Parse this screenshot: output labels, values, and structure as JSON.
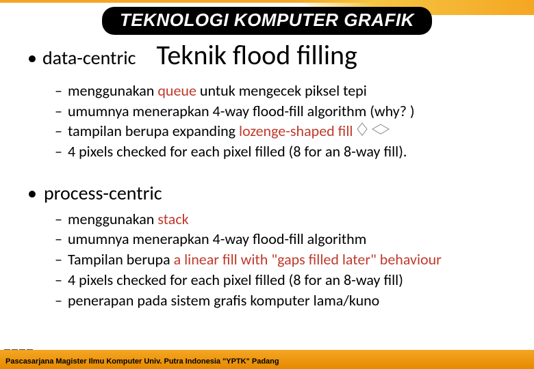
{
  "banner": "TEKNOLOGI KOMPUTER GRAFIK",
  "title": "Teknik flood filling",
  "section1": {
    "label": "data-centric",
    "items": [
      {
        "pre": "menggunakan ",
        "red": "queue",
        "post": " untuk mengecek piksel tepi"
      },
      {
        "pre": "umumnya menerapkan  4-way flood-fill algorithm (why? )",
        "red": "",
        "post": ""
      },
      {
        "pre": "tampilan berupa expanding ",
        "red": "lozenge-shaped fill",
        "post": "",
        "hasIcons": true
      },
      {
        "pre": "4 pixels checked for each pixel filled (8 for an 8-way fill).",
        "red": "",
        "post": ""
      }
    ]
  },
  "section2": {
    "label": "process-centric",
    "items": [
      {
        "pre": "menggunakan  ",
        "red": "stack",
        "post": ""
      },
      {
        "pre": "umumnya menerapkan 4-way flood-fill algorithm",
        "red": "",
        "post": ""
      },
      {
        "pre": "Tampilan berupa ",
        "red": "a linear fill with \"gaps filled later\" behaviour",
        "post": ""
      },
      {
        "pre": "4 pixels checked for each pixel filled (8 for an 8-way fill)",
        "red": "",
        "post": ""
      },
      {
        "pre": "penerapan pada sistem grafis komputer lama/kuno",
        "red": "",
        "post": ""
      }
    ]
  },
  "footer": "Pascasarjana Magister Ilmu Komputer  Univ. Putra Indonesia \"YPTK\" Padang",
  "colors": {
    "accent_red": "#c0392b",
    "banner_bg": "#000000",
    "footer_bg": "#f5a623"
  }
}
